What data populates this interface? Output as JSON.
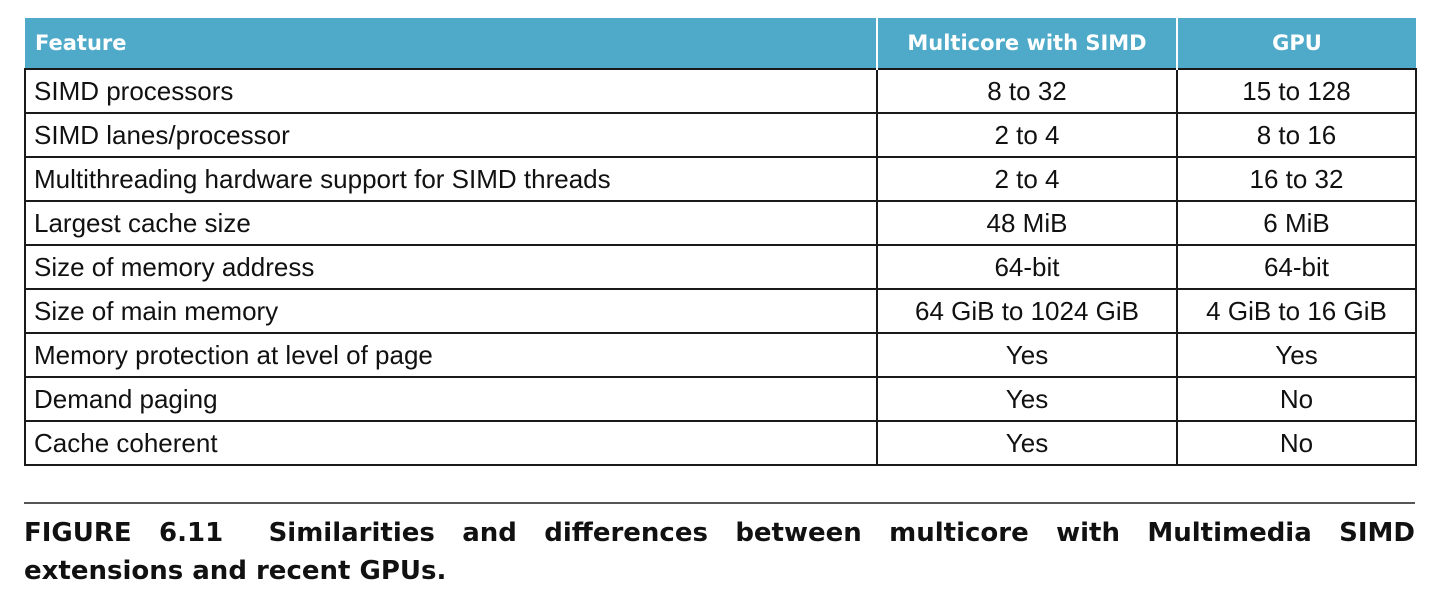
{
  "table": {
    "headers": [
      "Feature",
      "Multicore with SIMD",
      "GPU"
    ],
    "rows": [
      [
        "SIMD processors",
        "8 to 32",
        "15 to 128"
      ],
      [
        "SIMD lanes/processor",
        "2 to 4",
        "8 to 16"
      ],
      [
        "Multithreading hardware support for SIMD threads",
        "2 to 4",
        "16 to 32"
      ],
      [
        "Largest cache size",
        "48 MiB",
        "6 MiB"
      ],
      [
        "Size of memory address",
        "64-bit",
        "64-bit"
      ],
      [
        "Size of main memory",
        "64 GiB to 1024 GiB",
        "4 GiB to 16 GiB"
      ],
      [
        "Memory protection at level of page",
        "Yes",
        "Yes"
      ],
      [
        "Demand paging",
        "Yes",
        "No"
      ],
      [
        "Cache coherent",
        "Yes",
        "No"
      ]
    ]
  },
  "caption": {
    "figure_label": "FIGURE 6.11",
    "text": "Similarities and differences between multicore with Multimedia SIMD extensions and recent GPUs",
    "trailing": "."
  },
  "colors": {
    "header_bg": "#4eaac8",
    "header_text": "#ffffff",
    "border": "#1a1a1a"
  }
}
